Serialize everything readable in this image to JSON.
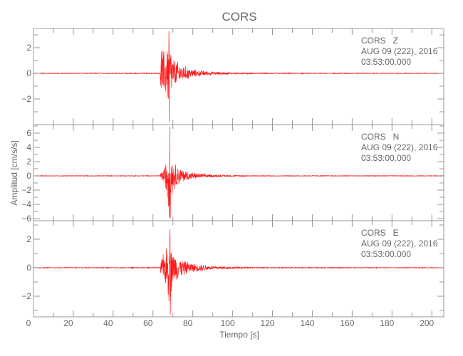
{
  "chart_data": {
    "type": "line",
    "title": "CORS",
    "xlabel": "Tiempo [s]",
    "ylabel": "Amplitud [cm/s/s]",
    "xlim": [
      0,
      206
    ],
    "x_ticks": [
      0,
      20,
      40,
      60,
      80,
      100,
      120,
      140,
      160,
      180,
      200
    ],
    "grid": false,
    "line_color": "#ff0000",
    "axis_color": "#999999",
    "panels": [
      {
        "station": "CORS   Z",
        "date": "AUG 09 (222), 2016",
        "time": "03:53:00.000",
        "ylim": [
          -4.0,
          3.5
        ],
        "y_ticks": [
          -2,
          0,
          2
        ],
        "onset_s": 64,
        "peak_time_s": 68,
        "peak_max": 3.3,
        "peak_min": -3.8,
        "envelope": [
          [
            0,
            0.03
          ],
          [
            63.5,
            0.04
          ],
          [
            64,
            2.6
          ],
          [
            66,
            1.8
          ],
          [
            68,
            3.3
          ],
          [
            70,
            1.3
          ],
          [
            75,
            0.7
          ],
          [
            80,
            0.35
          ],
          [
            90,
            0.15
          ],
          [
            100,
            0.07
          ],
          [
            120,
            0.04
          ],
          [
            206,
            0.03
          ]
        ]
      },
      {
        "station": "CORS   N",
        "date": "AUG 09 (222), 2016",
        "time": "03:53:00.000",
        "ylim": [
          -6.3,
          7.2
        ],
        "y_ticks": [
          -6,
          -4,
          -2,
          0,
          2,
          4,
          6
        ],
        "onset_s": 64,
        "peak_time_s": 68.5,
        "peak_max": 6.9,
        "peak_min": -5.8,
        "envelope": [
          [
            0,
            0.05
          ],
          [
            63.5,
            0.06
          ],
          [
            64,
            0.6
          ],
          [
            66,
            1.5
          ],
          [
            68.5,
            6.9
          ],
          [
            70,
            2.2
          ],
          [
            75,
            1.0
          ],
          [
            80,
            0.5
          ],
          [
            90,
            0.2
          ],
          [
            100,
            0.1
          ],
          [
            120,
            0.06
          ],
          [
            206,
            0.05
          ]
        ]
      },
      {
        "station": "CORS   E",
        "date": "AUG 09 (222), 2016",
        "time": "03:53:00.000",
        "ylim": [
          -3.45,
          3.3
        ],
        "y_ticks": [
          -2,
          0,
          2
        ],
        "onset_s": 64,
        "peak_time_s": 68.5,
        "peak_max": 2.7,
        "peak_min": -3.3,
        "envelope": [
          [
            0,
            0.03
          ],
          [
            63.5,
            0.04
          ],
          [
            64,
            0.8
          ],
          [
            66,
            1.2
          ],
          [
            68.5,
            3.0
          ],
          [
            70,
            1.2
          ],
          [
            75,
            0.6
          ],
          [
            80,
            0.35
          ],
          [
            90,
            0.15
          ],
          [
            100,
            0.08
          ],
          [
            120,
            0.04
          ],
          [
            206,
            0.03
          ]
        ]
      }
    ]
  }
}
